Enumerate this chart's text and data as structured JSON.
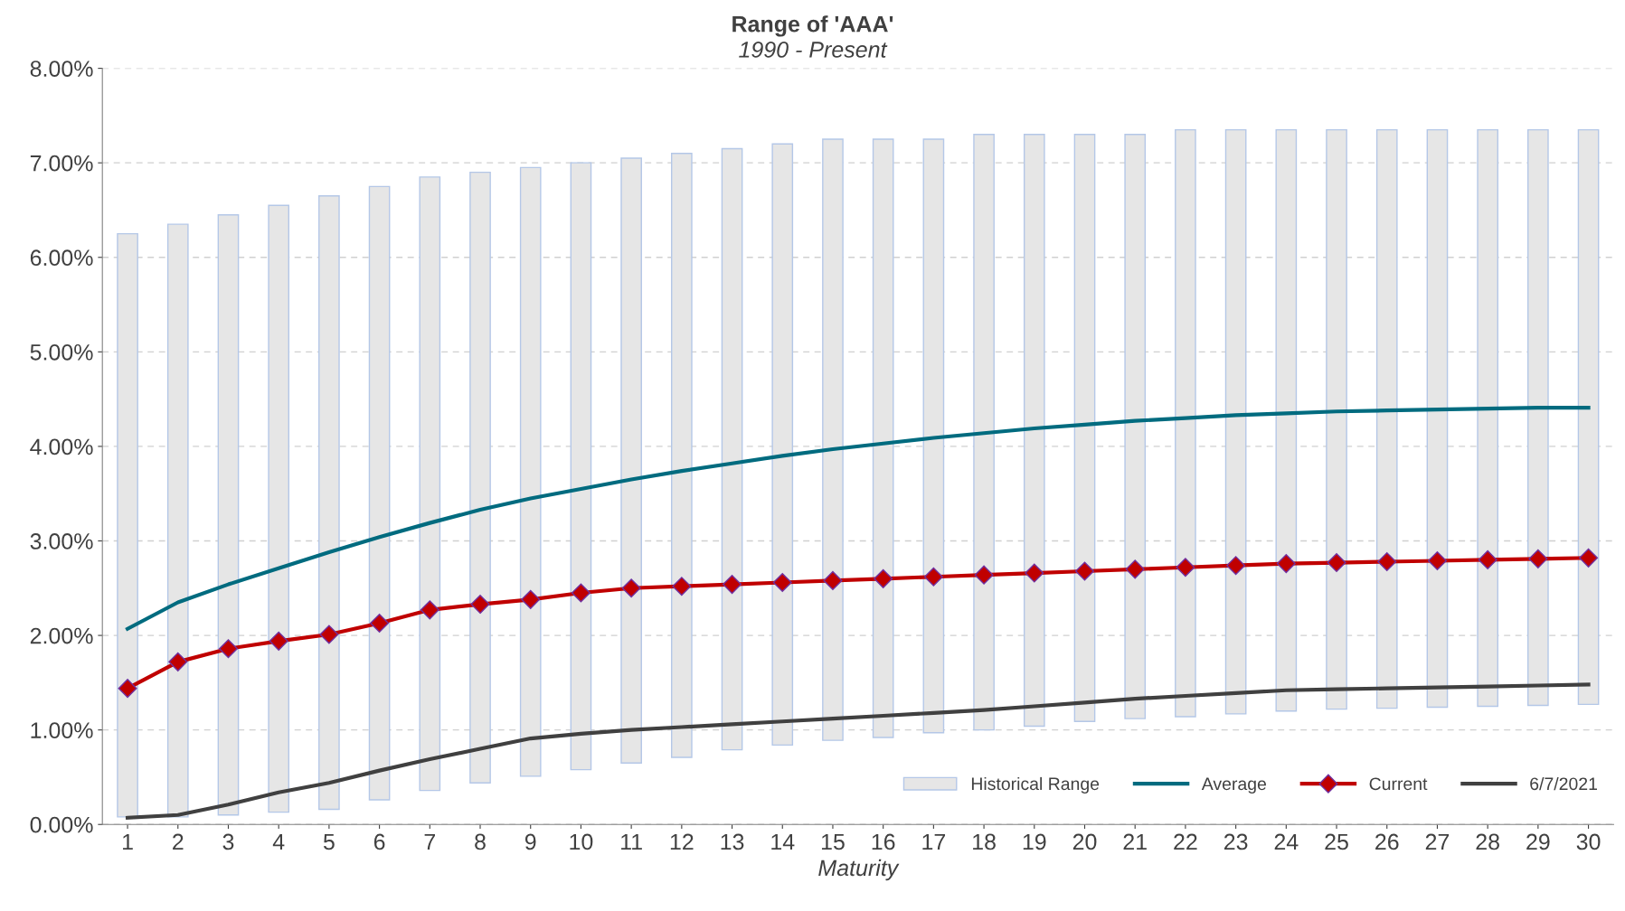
{
  "chart_data": {
    "type": "line",
    "title": "Range of 'AAA'",
    "subtitle": "1990 - Present",
    "xlabel": "Maturity",
    "categories": [
      "1",
      "2",
      "3",
      "4",
      "5",
      "6",
      "7",
      "8",
      "9",
      "10",
      "11",
      "12",
      "13",
      "14",
      "15",
      "16",
      "17",
      "18",
      "19",
      "20",
      "21",
      "22",
      "23",
      "24",
      "25",
      "26",
      "27",
      "28",
      "29",
      "30"
    ],
    "series": [
      {
        "name": "Historical Range",
        "type": "bar",
        "color": "#e6e6e6",
        "base": [
          0.08,
          0.08,
          0.1,
          0.13,
          0.16,
          0.26,
          0.36,
          0.44,
          0.51,
          0.58,
          0.65,
          0.71,
          0.79,
          0.84,
          0.89,
          0.92,
          0.97,
          1.0,
          1.04,
          1.09,
          1.12,
          1.14,
          1.17,
          1.2,
          1.22,
          1.23,
          1.24,
          1.25,
          1.26,
          1.27
        ],
        "values": [
          6.17,
          6.27,
          6.35,
          6.42,
          6.49,
          6.49,
          6.49,
          6.46,
          6.44,
          6.42,
          6.4,
          6.39,
          6.36,
          6.36,
          6.36,
          6.33,
          6.28,
          6.3,
          6.26,
          6.21,
          6.18,
          6.21,
          6.18,
          6.15,
          6.13,
          6.12,
          6.11,
          6.1,
          6.09,
          6.08
        ]
      },
      {
        "name": "Average",
        "color": "#006b7f",
        "marker": "none",
        "values": [
          2.07,
          2.35,
          2.54,
          2.71,
          2.88,
          3.04,
          3.19,
          3.33,
          3.45,
          3.55,
          3.65,
          3.74,
          3.82,
          3.9,
          3.97,
          4.03,
          4.09,
          4.14,
          4.19,
          4.23,
          4.27,
          4.3,
          4.33,
          4.35,
          4.37,
          4.38,
          4.39,
          4.4,
          4.41,
          4.41
        ]
      },
      {
        "name": "Current",
        "color": "#c00000",
        "marker": "diamond",
        "values": [
          1.44,
          1.72,
          1.86,
          1.94,
          2.01,
          2.13,
          2.27,
          2.33,
          2.38,
          2.45,
          2.5,
          2.52,
          2.54,
          2.56,
          2.58,
          2.6,
          2.62,
          2.64,
          2.66,
          2.68,
          2.7,
          2.72,
          2.74,
          2.76,
          2.77,
          2.78,
          2.79,
          2.8,
          2.81,
          2.82
        ]
      },
      {
        "name": "6/7/2021",
        "color": "#404040",
        "marker": "none",
        "values": [
          0.07,
          0.1,
          0.21,
          0.34,
          0.44,
          0.57,
          0.69,
          0.8,
          0.91,
          0.96,
          1.0,
          1.03,
          1.06,
          1.09,
          1.12,
          1.15,
          1.18,
          1.21,
          1.25,
          1.29,
          1.33,
          1.36,
          1.39,
          1.42,
          1.43,
          1.44,
          1.45,
          1.46,
          1.47,
          1.48
        ]
      }
    ],
    "ylim": [
      0,
      8
    ],
    "yticks": [
      {
        "value": 0,
        "label": "0.00%"
      },
      {
        "value": 1,
        "label": "1.00%"
      },
      {
        "value": 2,
        "label": "2.00%"
      },
      {
        "value": 3,
        "label": "3.00%"
      },
      {
        "value": 4,
        "label": "4.00%"
      },
      {
        "value": 5,
        "label": "5.00%"
      },
      {
        "value": 6,
        "label": "6.00%"
      },
      {
        "value": 7,
        "label": "7.00%"
      },
      {
        "value": 8,
        "label": "8.00%"
      }
    ],
    "grid": "y",
    "legend": "bottom right",
    "line_style": "solid"
  }
}
